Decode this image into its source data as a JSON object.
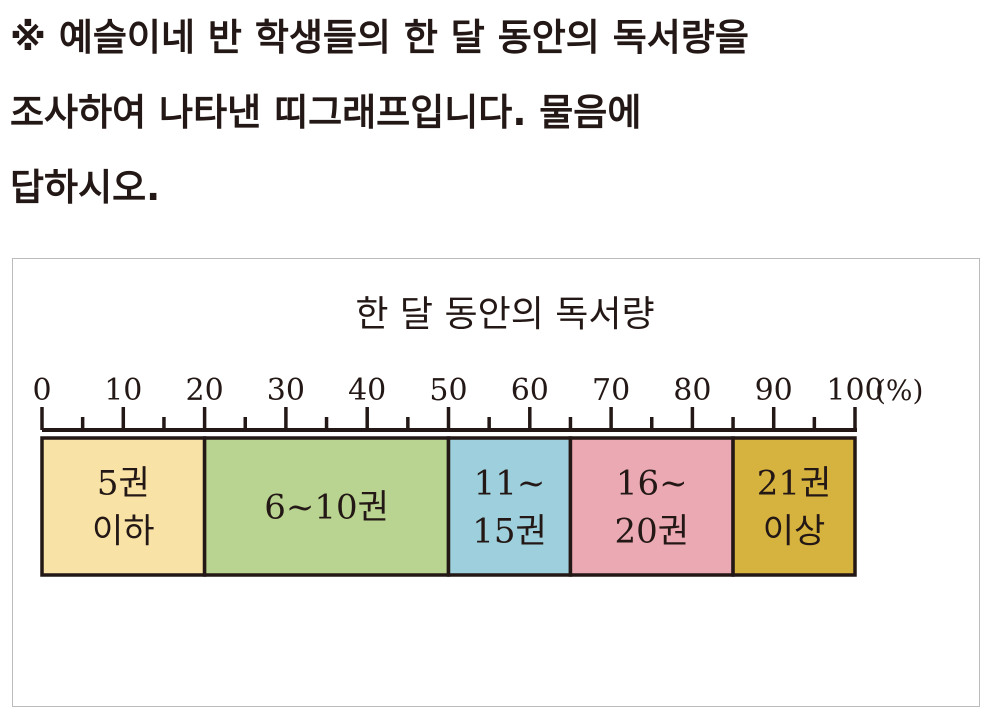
{
  "question": {
    "lines": [
      "※ 예슬이네 반 학생들의 한 달 동안의 독서량을",
      "조사하여 나타낸 띠그래프입니다. 물음에",
      "답하시오."
    ]
  },
  "chart_data": {
    "type": "bar",
    "subtype": "100% stacked strip (band graph)",
    "title": "한 달 동안의 독서량",
    "unit_label": "(%)",
    "xlim": [
      0,
      100
    ],
    "major_ticks": [
      0,
      10,
      20,
      30,
      40,
      50,
      60,
      70,
      80,
      90,
      100
    ],
    "minor_tick_step": 5,
    "tick_labels": [
      "0",
      "10",
      "20",
      "30",
      "40",
      "50",
      "60",
      "70",
      "80",
      "90",
      "100"
    ],
    "grid": false,
    "categories": [
      {
        "label": [
          "5권",
          "이하"
        ],
        "value": 20,
        "color": "#f9e2a5"
      },
      {
        "label": [
          "6~10권"
        ],
        "value": 30,
        "color": "#b9d491"
      },
      {
        "label": [
          "11~",
          "15권"
        ],
        "value": 15,
        "color": "#9ecfdc"
      },
      {
        "label": [
          "16~",
          "20권"
        ],
        "value": 20,
        "color": "#eaa9b3"
      },
      {
        "label": [
          "21권",
          "이상"
        ],
        "value": 15,
        "color": "#d6b23f"
      }
    ]
  }
}
